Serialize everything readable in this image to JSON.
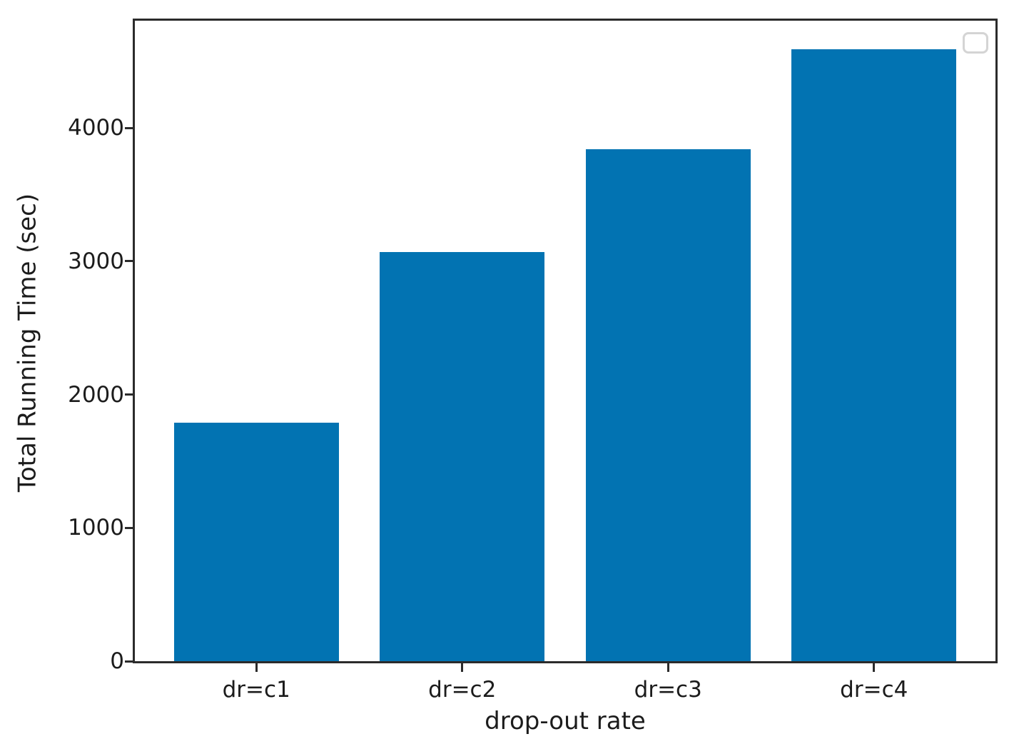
{
  "chart_data": {
    "type": "bar",
    "categories": [
      "dr=c1",
      "dr=c2",
      "dr=c3",
      "dr=c4"
    ],
    "values": [
      1790,
      3070,
      3840,
      4590
    ],
    "title": "",
    "xlabel": "drop-out rate",
    "ylabel": "Total Running Time (sec)",
    "ylim": [
      0,
      4805
    ],
    "yticks": [
      0,
      1000,
      2000,
      3000,
      4000
    ],
    "grid": false,
    "legend": {
      "position": "upper right",
      "entries": []
    },
    "colors": {
      "bar": "#0273b2",
      "spine": "#2b2b2b",
      "text": "#1c1c1c",
      "legend_border": "#d4d4d4",
      "background": "#ffffff"
    }
  }
}
